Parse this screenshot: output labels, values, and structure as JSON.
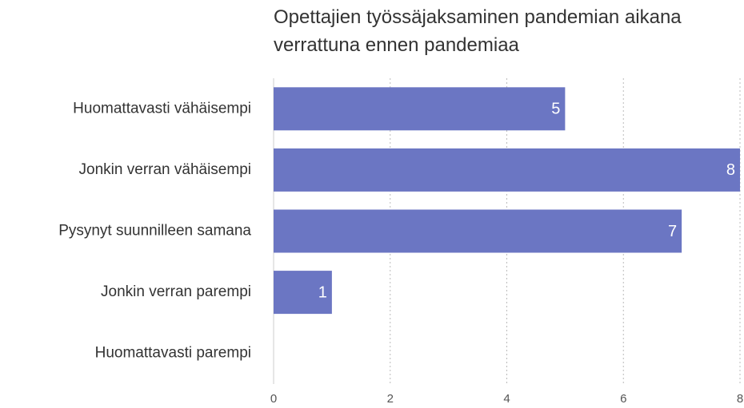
{
  "chart_data": {
    "type": "barh",
    "title": "Opettajien työssäjaksaminen pandemian aikana verrattuna ennen pandemiaa",
    "categories": [
      "Huomattavasti vähäisempi",
      "Jonkin verran vähäisempi",
      "Pysynyt suunnilleen samana",
      "Jonkin verran parempi",
      "Huomattavasti parempi"
    ],
    "values": [
      5,
      8,
      7,
      1,
      0
    ],
    "color": "#6b76c3",
    "xlim": [
      0,
      8
    ],
    "xticks": [
      0,
      2,
      4,
      6,
      8
    ],
    "grid": true
  }
}
